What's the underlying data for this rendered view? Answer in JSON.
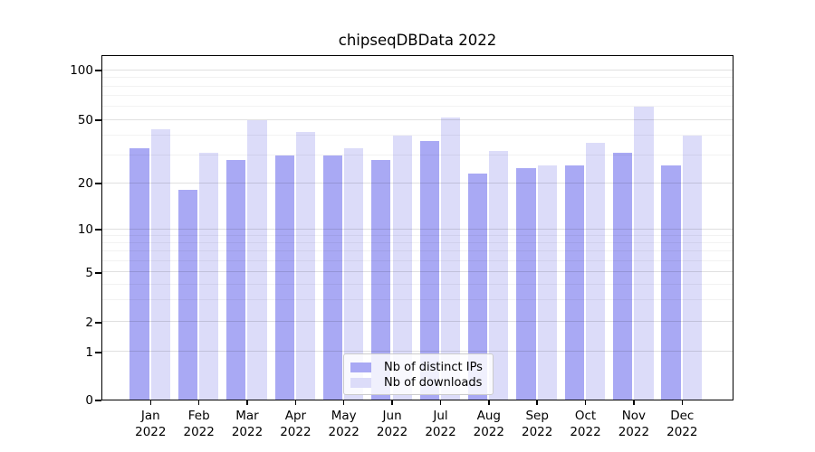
{
  "title": "chipseqDBData 2022",
  "colors": {
    "bar_distinct_ips": "#a9a9f4",
    "bar_downloads": "#dcdcf9",
    "axis": "#000000",
    "grid_major": "rgba(0,0,0,0.12)",
    "grid_minor": "rgba(0,0,0,0.05)"
  },
  "legend": {
    "items": [
      {
        "label": "Nb of distinct IPs",
        "color": "#a9a9f4"
      },
      {
        "label": "Nb of downloads",
        "color": "#dcdcf9"
      }
    ]
  },
  "chart_data": {
    "type": "bar",
    "title": "chipseqDBData 2022",
    "categories": [
      "Jan",
      "Feb",
      "Mar",
      "Apr",
      "May",
      "Jun",
      "Jul",
      "Aug",
      "Sep",
      "Oct",
      "Nov",
      "Dec"
    ],
    "year": "2022",
    "series": [
      {
        "name": "Nb of distinct IPs",
        "values": [
          33,
          18,
          28,
          30,
          30,
          28,
          37,
          23,
          25,
          26,
          31,
          26
        ]
      },
      {
        "name": "Nb of downloads",
        "values": [
          44,
          31,
          50,
          42,
          33,
          40,
          52,
          32,
          26,
          36,
          60,
          40
        ]
      }
    ],
    "xlabel": "",
    "ylabel": "",
    "yscale": "symlog",
    "y_major_ticks": [
      0,
      1,
      2,
      5,
      10,
      20,
      50,
      100
    ],
    "y_minor_ticks": [
      3,
      4,
      6,
      7,
      8,
      9,
      30,
      40,
      60,
      70,
      80,
      90
    ],
    "ylim": [
      0,
      117
    ],
    "grid": "on",
    "legend_position": "lower center"
  }
}
